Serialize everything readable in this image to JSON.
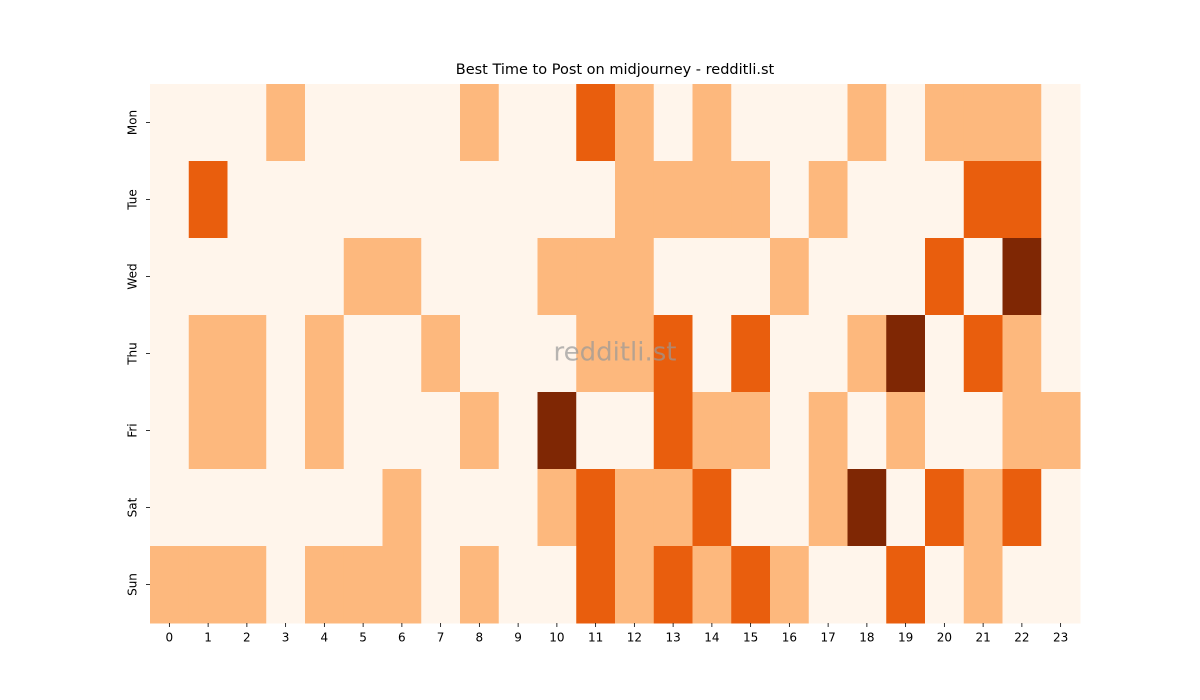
{
  "chart_data": {
    "type": "heatmap",
    "title": "Best Time to Post on midjourney - redditli.st",
    "watermark": "redditli.st",
    "x": [
      0,
      1,
      2,
      3,
      4,
      5,
      6,
      7,
      8,
      9,
      10,
      11,
      12,
      13,
      14,
      15,
      16,
      17,
      18,
      19,
      20,
      21,
      22,
      23
    ],
    "y": [
      "Mon",
      "Tue",
      "Wed",
      "Thu",
      "Fri",
      "Sat",
      "Sun"
    ],
    "values": [
      [
        0,
        0,
        0,
        1,
        0,
        0,
        0,
        0,
        1,
        0,
        0,
        2,
        1,
        0,
        1,
        0,
        0,
        0,
        1,
        0,
        1,
        1,
        1,
        0
      ],
      [
        0,
        2,
        0,
        0,
        0,
        0,
        0,
        0,
        0,
        0,
        0,
        0,
        1,
        1,
        1,
        1,
        0,
        1,
        0,
        0,
        0,
        2,
        2,
        0
      ],
      [
        0,
        0,
        0,
        0,
        0,
        1,
        1,
        0,
        0,
        0,
        1,
        1,
        1,
        0,
        0,
        0,
        1,
        0,
        0,
        0,
        2,
        0,
        3,
        0
      ],
      [
        0,
        1,
        1,
        0,
        1,
        0,
        0,
        1,
        0,
        0,
        0,
        1,
        1,
        2,
        0,
        2,
        0,
        0,
        1,
        3,
        0,
        2,
        1,
        0
      ],
      [
        0,
        1,
        1,
        0,
        1,
        0,
        0,
        0,
        1,
        0,
        3,
        0,
        0,
        2,
        1,
        1,
        0,
        1,
        0,
        1,
        0,
        0,
        1,
        1
      ],
      [
        0,
        0,
        0,
        0,
        0,
        0,
        1,
        0,
        0,
        0,
        1,
        2,
        1,
        1,
        2,
        0,
        0,
        1,
        3,
        0,
        2,
        1,
        2,
        0
      ],
      [
        1,
        1,
        1,
        0,
        1,
        1,
        1,
        0,
        1,
        0,
        0,
        2,
        1,
        2,
        1,
        2,
        1,
        0,
        0,
        2,
        0,
        1,
        0,
        0
      ]
    ],
    "colors": [
      "#fff5eb",
      "#fdb87d",
      "#e95e0d",
      "#7f2704"
    ]
  }
}
